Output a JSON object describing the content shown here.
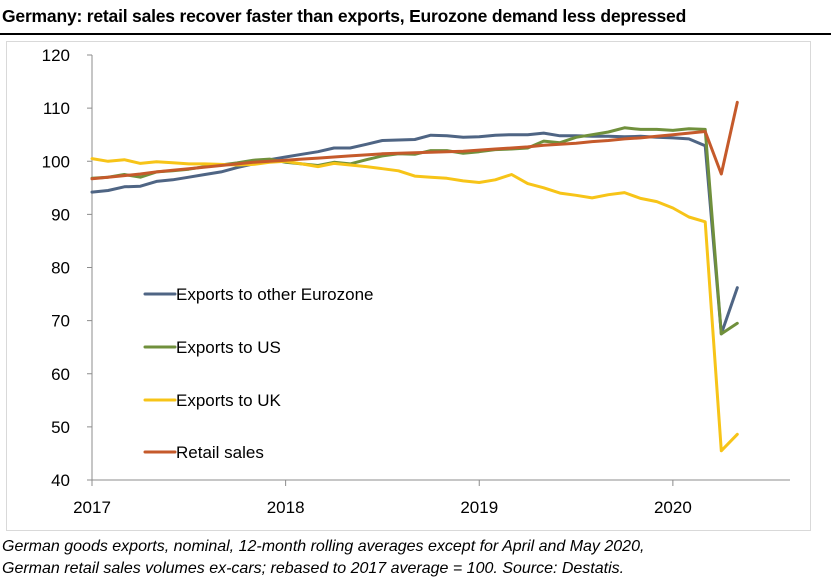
{
  "chart_data": {
    "type": "line",
    "title": "Germany: retail sales recover faster than exports, Eurozone demand less depressed",
    "xlabel": "",
    "ylabel": "",
    "ylim": [
      40,
      120
    ],
    "yticks": [
      40,
      50,
      60,
      70,
      80,
      90,
      100,
      110,
      120
    ],
    "xlim": [
      2017.0,
      2020.45
    ],
    "xticks": [
      2017,
      2018,
      2019,
      2020
    ],
    "grid": false,
    "legend_position": "center-left",
    "series": [
      {
        "name": "Exports to other Eurozone",
        "color": "#4f6584",
        "x": [
          2017.0,
          2017.083,
          2017.167,
          2017.25,
          2017.333,
          2017.417,
          2017.5,
          2017.583,
          2017.667,
          2017.75,
          2017.833,
          2017.917,
          2018.0,
          2018.083,
          2018.167,
          2018.25,
          2018.333,
          2018.417,
          2018.5,
          2018.583,
          2018.667,
          2018.75,
          2018.833,
          2018.917,
          2019.0,
          2019.083,
          2019.167,
          2019.25,
          2019.333,
          2019.417,
          2019.5,
          2019.583,
          2019.667,
          2019.75,
          2019.833,
          2019.917,
          2020.0,
          2020.083,
          2020.167,
          2020.25,
          2020.333
        ],
        "values": [
          94.2,
          94.5,
          95.2,
          95.3,
          96.2,
          96.5,
          97.0,
          97.5,
          98.0,
          98.8,
          99.5,
          100.3,
          100.8,
          101.3,
          101.8,
          102.5,
          102.5,
          103.2,
          103.9,
          104.0,
          104.1,
          104.9,
          104.8,
          104.5,
          104.6,
          104.9,
          105.0,
          105.0,
          105.3,
          104.8,
          104.8,
          104.7,
          104.7,
          104.6,
          104.7,
          104.5,
          104.4,
          104.2,
          102.9,
          67.5,
          76.2
        ]
      },
      {
        "name": "Exports to US",
        "color": "#70903c",
        "x": [
          2017.0,
          2017.083,
          2017.167,
          2017.25,
          2017.333,
          2017.417,
          2017.5,
          2017.583,
          2017.667,
          2017.75,
          2017.833,
          2017.917,
          2018.0,
          2018.083,
          2018.167,
          2018.25,
          2018.333,
          2018.417,
          2018.5,
          2018.583,
          2018.667,
          2018.75,
          2018.833,
          2018.917,
          2019.0,
          2019.083,
          2019.167,
          2019.25,
          2019.333,
          2019.417,
          2019.5,
          2019.583,
          2019.667,
          2019.75,
          2019.833,
          2019.917,
          2020.0,
          2020.083,
          2020.167,
          2020.25,
          2020.333
        ],
        "values": [
          96.8,
          97.0,
          97.5,
          97.0,
          98.0,
          98.2,
          98.5,
          99.0,
          99.3,
          99.7,
          100.2,
          100.4,
          99.8,
          99.5,
          99.2,
          99.8,
          99.5,
          100.3,
          101.0,
          101.4,
          101.3,
          102.0,
          102.0,
          101.5,
          101.8,
          102.2,
          102.3,
          102.5,
          103.8,
          103.5,
          104.5,
          105.0,
          105.5,
          106.3,
          106.0,
          106.0,
          105.8,
          106.1,
          106.0,
          67.5,
          69.5
        ]
      },
      {
        "name": "Exports to UK",
        "color": "#f7c418",
        "x": [
          2017.0,
          2017.083,
          2017.167,
          2017.25,
          2017.333,
          2017.417,
          2017.5,
          2017.583,
          2017.667,
          2017.75,
          2017.833,
          2017.917,
          2018.0,
          2018.083,
          2018.167,
          2018.25,
          2018.333,
          2018.417,
          2018.5,
          2018.583,
          2018.667,
          2018.75,
          2018.833,
          2018.917,
          2019.0,
          2019.083,
          2019.167,
          2019.25,
          2019.333,
          2019.417,
          2019.5,
          2019.583,
          2019.667,
          2019.75,
          2019.833,
          2019.917,
          2020.0,
          2020.083,
          2020.167,
          2020.25,
          2020.333
        ],
        "values": [
          100.5,
          100.0,
          100.3,
          99.6,
          99.9,
          99.7,
          99.5,
          99.5,
          99.4,
          99.3,
          99.4,
          99.8,
          100.0,
          99.5,
          99.0,
          99.6,
          99.3,
          99.0,
          98.6,
          98.2,
          97.2,
          97.0,
          96.8,
          96.3,
          96.0,
          96.5,
          97.5,
          95.8,
          95.0,
          94.0,
          93.6,
          93.1,
          93.7,
          94.1,
          93.0,
          92.4,
          91.2,
          89.5,
          88.6,
          45.5,
          48.6
        ]
      },
      {
        "name": "Retail sales",
        "color": "#c55a2b",
        "x": [
          2017.0,
          2017.083,
          2017.167,
          2017.25,
          2017.333,
          2017.417,
          2017.5,
          2017.583,
          2017.667,
          2017.75,
          2017.833,
          2017.917,
          2018.0,
          2018.083,
          2018.167,
          2018.25,
          2018.333,
          2018.417,
          2018.5,
          2018.583,
          2018.667,
          2018.75,
          2018.833,
          2018.917,
          2019.0,
          2019.083,
          2019.167,
          2019.25,
          2019.333,
          2019.417,
          2019.5,
          2019.583,
          2019.667,
          2019.75,
          2019.833,
          2019.917,
          2020.0,
          2020.083,
          2020.167,
          2020.25,
          2020.333
        ],
        "values": [
          96.7,
          97.0,
          97.3,
          97.6,
          98.0,
          98.3,
          98.6,
          98.9,
          99.2,
          99.5,
          99.8,
          100.0,
          100.2,
          100.4,
          100.6,
          100.8,
          101.0,
          101.2,
          101.4,
          101.5,
          101.6,
          101.7,
          101.8,
          101.9,
          102.1,
          102.3,
          102.5,
          102.7,
          103.0,
          103.2,
          103.4,
          103.7,
          103.9,
          104.2,
          104.4,
          104.7,
          105.0,
          105.3,
          105.6,
          97.6,
          111.1
        ]
      }
    ]
  },
  "footnote": {
    "line1": "German goods exports, nominal, 12-month rolling averages except for April and May 2020,",
    "line2": "German retail sales volumes ex-cars; rebased to 2017 average = 100. Source: Destatis."
  }
}
